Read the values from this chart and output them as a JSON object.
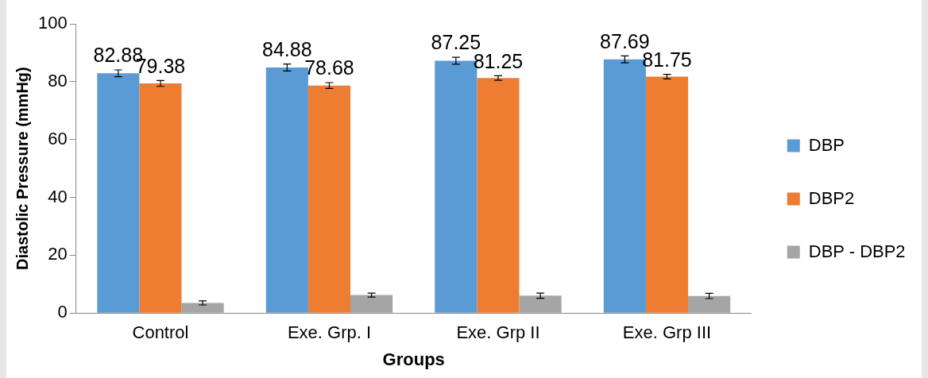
{
  "chart_data": {
    "type": "bar",
    "xlabel": "Groups",
    "ylabel": "Diastolic Pressure (mmHg)",
    "categories": [
      "Control",
      "Exe. Grp. I",
      "Exe. Grp II",
      "Exe. Grp III"
    ],
    "series": [
      {
        "name": "DBP",
        "color": "#5b9bd5",
        "values": [
          82.88,
          84.88,
          87.25,
          87.69
        ],
        "errors": [
          1.2,
          1.2,
          1.2,
          1.2
        ],
        "value_labels": [
          "82.88",
          "84.88",
          "87.25",
          "87.69"
        ]
      },
      {
        "name": "DBP2",
        "color": "#ed7d31",
        "values": [
          79.38,
          78.68,
          81.25,
          81.75
        ],
        "errors": [
          1,
          1,
          0.8,
          0.8
        ],
        "value_labels": [
          "79.38",
          "78.68",
          "81.25",
          "81.75"
        ]
      },
      {
        "name": "DBP - DBP2",
        "color": "#a5a5a5",
        "values": [
          3.5,
          6.2,
          6,
          5.9
        ],
        "errors": [
          0.7,
          0.7,
          0.9,
          0.9
        ]
      }
    ],
    "ylim": [
      0,
      100
    ],
    "yticks": [
      0,
      20,
      40,
      60,
      80,
      100
    ],
    "grid": false,
    "legend": "right"
  }
}
